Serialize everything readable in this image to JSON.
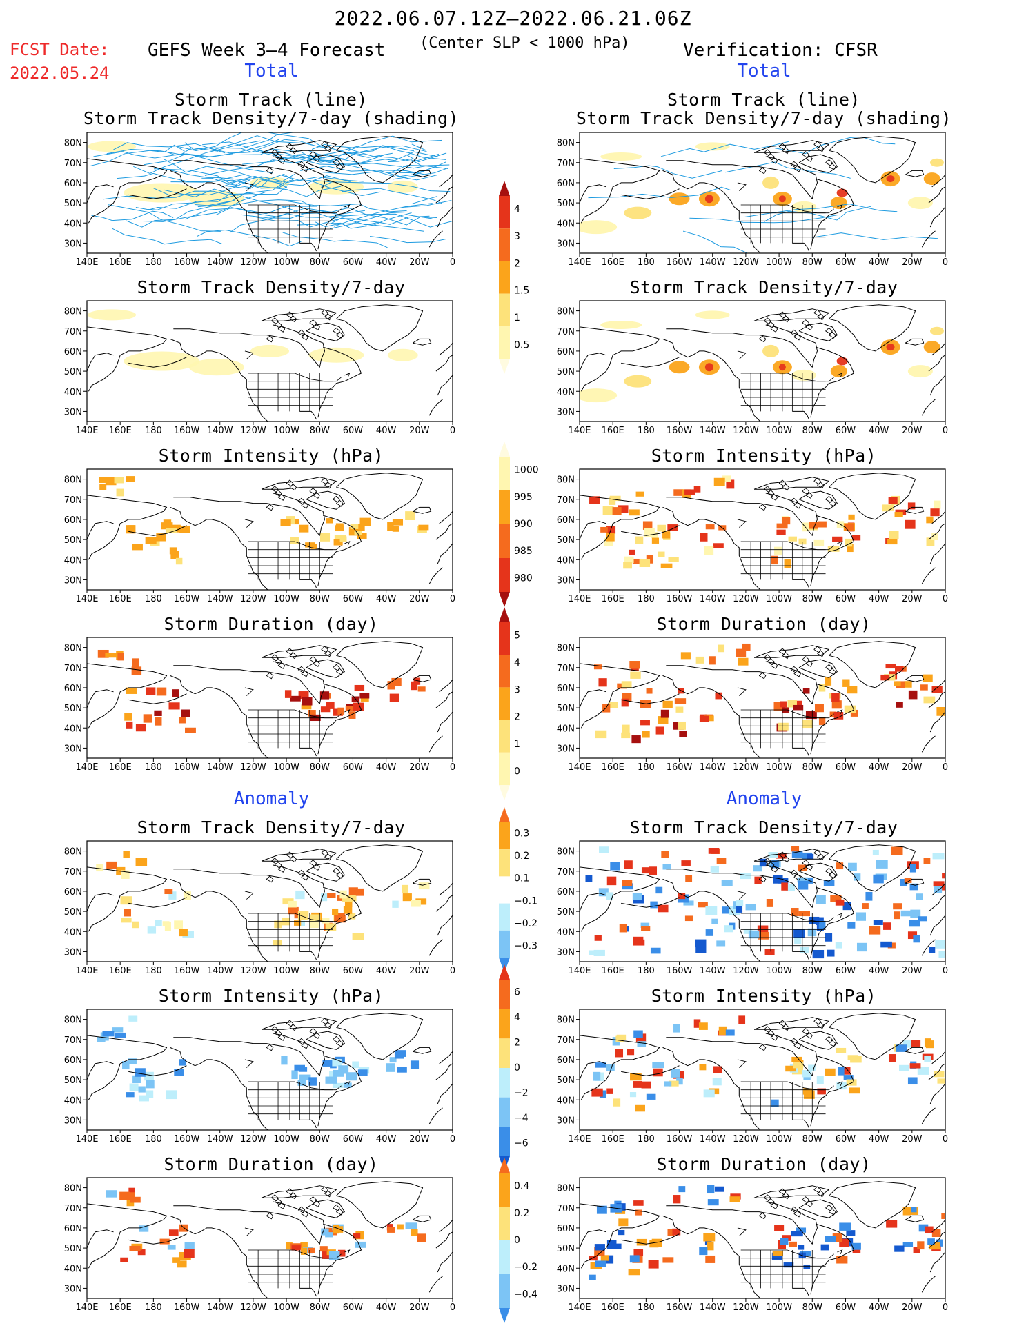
{
  "header": {
    "date_range": "2022.06.07.12Z–2022.06.21.06Z",
    "fcst_label": "FCST Date:",
    "fcst_date": "2022.05.24",
    "forecast_title": "GEFS Week 3–4 Forecast",
    "slp_note": "(Center SLP < 1000 hPa)",
    "verification_title": "Verification: CFSR",
    "total_label": "Total",
    "anomaly_label": "Anomaly"
  },
  "axis": {
    "x_ticks": [
      "140E",
      "160E",
      "180",
      "160W",
      "140W",
      "120W",
      "100W",
      "80W",
      "60W",
      "40W",
      "20W",
      "0"
    ],
    "y_ticks": [
      "80N",
      "70N",
      "60N",
      "50N",
      "40N",
      "30N"
    ]
  },
  "colors": {
    "light_yellow": "#fff6b0",
    "yellow": "#fde27a",
    "orange": "#fba41b",
    "orange_red": "#f56b1e",
    "red": "#e5341b",
    "dark_red": "#a6100f",
    "light_blue": "#bdeefb",
    "mid_blue": "#7cc4f5",
    "blue": "#3a8ee8",
    "dark_blue": "#1459cf",
    "track_line": "#1e9be0",
    "coast": "#000000"
  },
  "colorbars": [
    {
      "id": "density",
      "labels": [
        "4",
        "3",
        "2",
        "1.5",
        "1",
        "0.5"
      ]
    },
    {
      "id": "intensity",
      "labels": [
        "1000",
        "995",
        "990",
        "985",
        "980"
      ]
    },
    {
      "id": "duration",
      "labels": [
        "5",
        "4",
        "3",
        "2",
        "1",
        "0"
      ]
    },
    {
      "id": "anom_density",
      "labels": [
        "0.3",
        "0.2",
        "0.1",
        "−0.1",
        "−0.2",
        "−0.3"
      ]
    },
    {
      "id": "anom_intensity",
      "labels": [
        "6",
        "4",
        "2",
        "0",
        "−2",
        "−4",
        "−6"
      ]
    },
    {
      "id": "anom_duration",
      "labels": [
        "0.4",
        "0.2",
        "0",
        "−0.2",
        "−0.4"
      ]
    }
  ],
  "panels": [
    {
      "id": "fc-tracks",
      "title": "Storm Track (line)",
      "subtitle": "Storm Track Density/7-day (shading)"
    },
    {
      "id": "vf-tracks",
      "title": "Storm Track (line)",
      "subtitle": "Storm Track Density/7-day (shading)"
    },
    {
      "id": "fc-density",
      "title": "Storm Track Density/7-day"
    },
    {
      "id": "vf-density",
      "title": "Storm Track Density/7-day"
    },
    {
      "id": "fc-intensity",
      "title": "Storm Intensity (hPa)"
    },
    {
      "id": "vf-intensity",
      "title": "Storm Intensity (hPa)"
    },
    {
      "id": "fc-duration",
      "title": "Storm Duration (day)"
    },
    {
      "id": "vf-duration",
      "title": "Storm Duration (day)"
    },
    {
      "id": "fc-anom-density",
      "title": "Storm Track Density/7-day"
    },
    {
      "id": "vf-anom-density",
      "title": "Storm Track Density/7-day"
    },
    {
      "id": "fc-anom-intensity",
      "title": "Storm Intensity (hPa)"
    },
    {
      "id": "vf-anom-intensity",
      "title": "Storm Intensity (hPa)"
    },
    {
      "id": "fc-anom-duration",
      "title": "Storm Duration (day)"
    },
    {
      "id": "vf-anom-duration",
      "title": "Storm Duration (day)"
    }
  ]
}
